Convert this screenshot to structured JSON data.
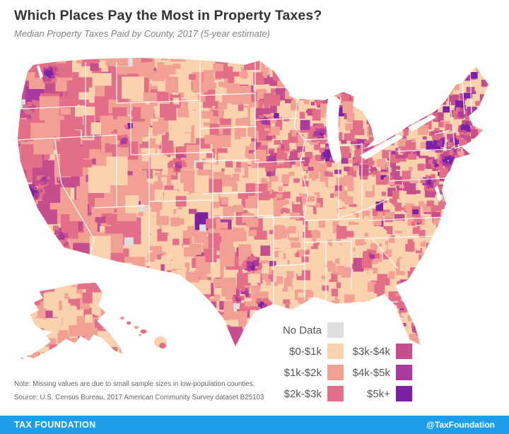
{
  "header": {
    "title": "Which Places Pay the Most in Property Taxes?",
    "subtitle": "Median Property Taxes Paid by County, 2017 (5-year estimate)"
  },
  "legend": {
    "no_data": {
      "label": "No Data",
      "color": "#dedede"
    },
    "items": [
      {
        "label": "$0-$1k",
        "color": "#fbd2ae"
      },
      {
        "label": "$1k-$2k",
        "color": "#f2a094"
      },
      {
        "label": "$2k-$3k",
        "color": "#e36e88"
      },
      {
        "label": "$3k-$4k",
        "color": "#c64e8d"
      },
      {
        "label": "$4k-$5k",
        "color": "#aa3a9d"
      },
      {
        "label": "$5k+",
        "color": "#7c20a6"
      }
    ]
  },
  "notes": {
    "note": "Note: Missing values are due to small sample sizes in low-population counties.",
    "source": "Source: U.S. Census Bureau, 2017 American Community Survey dataset B25103"
  },
  "footer": {
    "brand": "TAX FOUNDATION",
    "handle": "@TaxFoundation",
    "bar_color": "#1d9eeb"
  },
  "chart_data": {
    "type": "choropleth",
    "title": "Median Property Taxes Paid by County, 2017 (5-year estimate)",
    "geography": "United States counties (incl. Alaska and Hawaii insets)",
    "bins": [
      "No Data",
      "$0-$1k",
      "$1k-$2k",
      "$2k-$3k",
      "$3k-$4k",
      "$4k-$5k",
      "$5k+"
    ],
    "legend_position": "bottom-right",
    "pattern_summary": {
      "highest_4k_plus": "Northeast corridor (New Jersey, NYC metro, Connecticut, Massachusetts, southern New Hampshire), Chicago area, Seattle, San Francisco Bay Area, Washington DC area, and Texas metros (Dallas, Austin, Houston)",
      "mid_2k_3k": "West Coast states, Upper Midwest (Wisconsin, Minnesota, Michigan), Upstate New York, Pennsylvania, Colorado, coastal Florida",
      "lowest_0_1k": "Deep South, Appalachia, rural Plains and Mountain West, interior Texas borderlands"
    }
  }
}
